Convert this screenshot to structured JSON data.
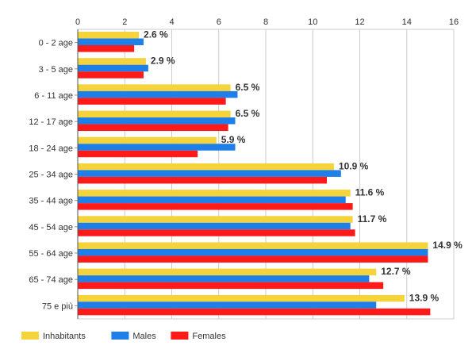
{
  "chart_data": {
    "type": "bar",
    "orientation": "horizontal",
    "categories": [
      "0 - 2 age",
      "3 - 5 age",
      "6 - 11 age",
      "12 - 17 age",
      "18 - 24 age",
      "25 - 34 age",
      "35 - 44 age",
      "45 - 54 age",
      "55 - 64 age",
      "65 - 74 age",
      "75 e più"
    ],
    "series": [
      {
        "name": "Inhabitants",
        "color": "#f5d33b",
        "values": [
          2.6,
          2.9,
          6.5,
          6.5,
          5.9,
          10.9,
          11.6,
          11.7,
          14.9,
          12.7,
          13.9
        ]
      },
      {
        "name": "Males",
        "color": "#1e7fe8",
        "values": [
          2.8,
          3.0,
          6.8,
          6.7,
          6.7,
          11.2,
          11.4,
          11.6,
          14.9,
          12.4,
          12.7
        ]
      },
      {
        "name": "Females",
        "color": "#ff1a1a",
        "values": [
          2.4,
          2.8,
          6.3,
          6.4,
          5.1,
          10.6,
          11.7,
          11.8,
          14.9,
          13.0,
          15.0
        ]
      }
    ],
    "data_labels": [
      "2.6 %",
      "2.9 %",
      "6.5 %",
      "6.5 %",
      "5.9 %",
      "10.9 %",
      "11.6 %",
      "11.7 %",
      "14.9 %",
      "12.7 %",
      "13.9 %"
    ],
    "xticks": [
      "0",
      "2",
      "4",
      "6",
      "8",
      "10",
      "12",
      "14",
      "16"
    ],
    "xlim": [
      0,
      16
    ],
    "grid": true,
    "legend_position": "bottom-left"
  }
}
